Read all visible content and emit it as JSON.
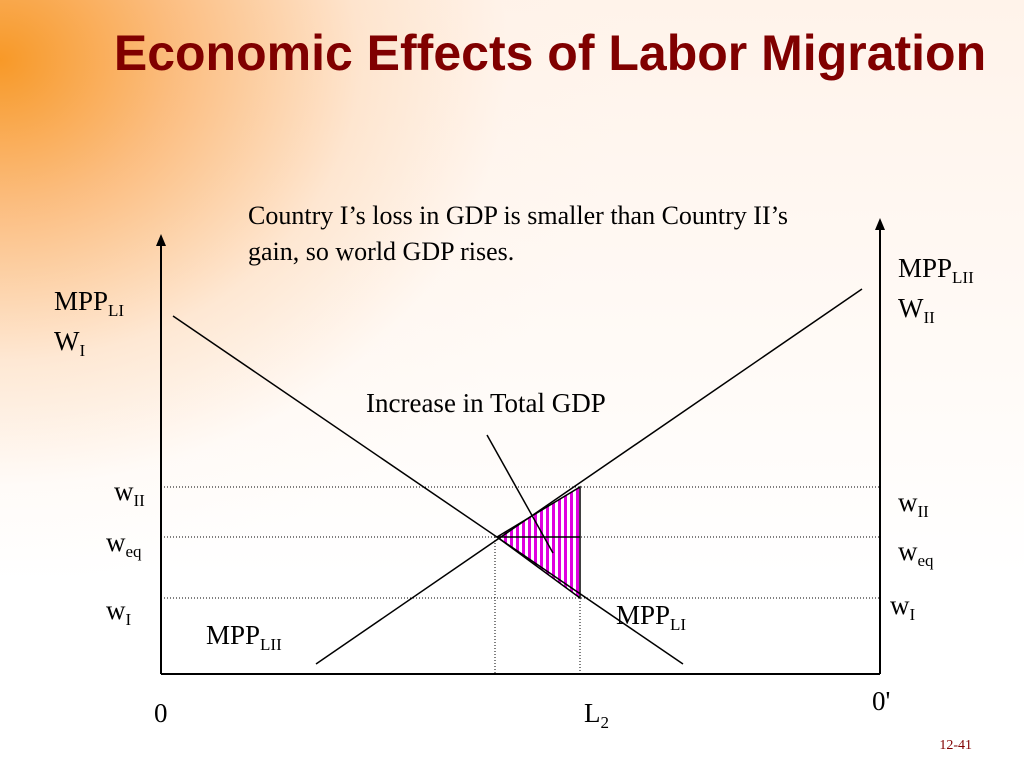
{
  "slide": {
    "title": "Economic Effects of Labor Migration",
    "caption": "Country I’s loss in GDP is smaller than Country II’s gain, so world GDP rises.",
    "slide_number": "12-41"
  },
  "diagram": {
    "left_axis": {
      "label_mpp": "MPP",
      "label_mpp_sub": "LI",
      "label_w": "W",
      "label_w_sub": "I"
    },
    "right_axis": {
      "label_mpp": "MPP",
      "label_mpp_sub": "LII",
      "label_w": "W",
      "label_w_sub": "II"
    },
    "curves": {
      "mpp_lii": {
        "base": "MPP",
        "sub": "LII"
      },
      "mpp_li": {
        "base": "MPP",
        "sub": "LI"
      }
    },
    "wage_levels": {
      "w_ii": {
        "base": "w",
        "sub": "II"
      },
      "w_eq": {
        "base": "w",
        "sub": "eq"
      },
      "w_i": {
        "base": "w",
        "sub": "I"
      }
    },
    "origin_left": "0",
    "origin_right": "0'",
    "l2": {
      "base": "L",
      "sub": "2"
    },
    "annotation": "Increase in Total GDP",
    "colors": {
      "shaded_area": "#e000e0",
      "axis": "#000000",
      "title": "#800000"
    }
  }
}
